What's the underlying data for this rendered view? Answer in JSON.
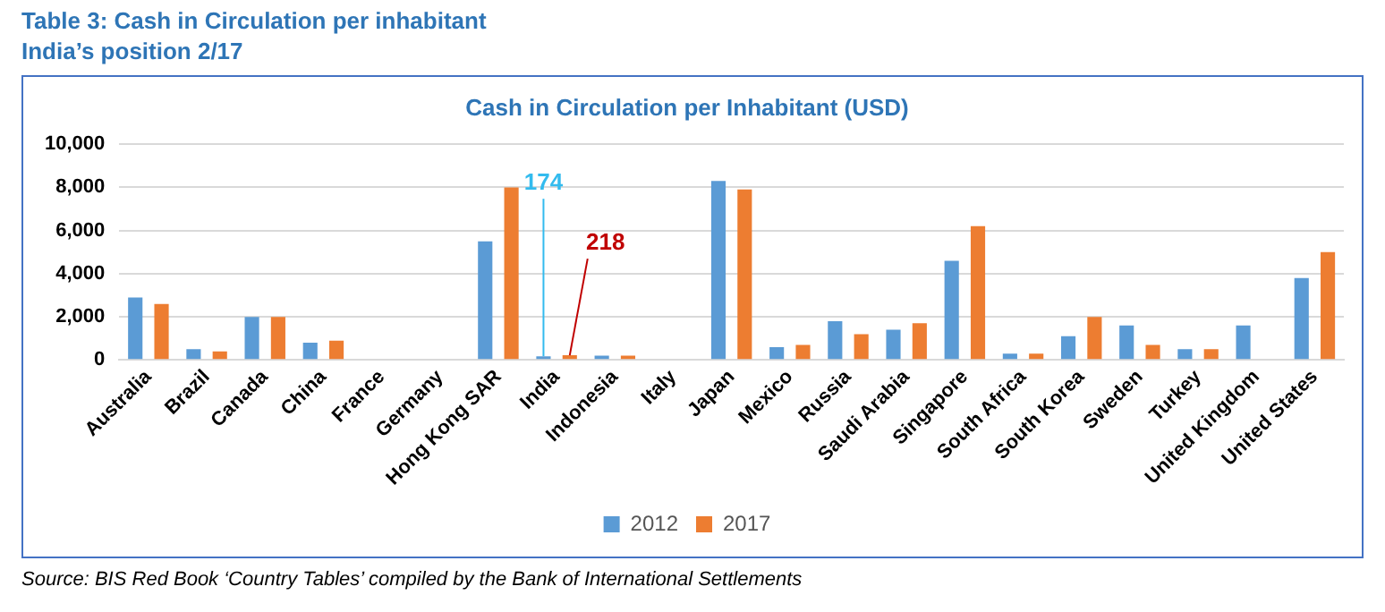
{
  "chart_data": {
    "type": "bar",
    "title": "Cash in Circulation per Inhabitant (USD)",
    "categories": [
      "Australia",
      "Brazil",
      "Canada",
      "China",
      "France",
      "Germany",
      "Hong Kong SAR",
      "India",
      "Indonesia",
      "Italy",
      "Japan",
      "Mexico",
      "Russia",
      "Saudi Arabia",
      "Singapore",
      "South Africa",
      "South Korea",
      "Sweden",
      "Turkey",
      "United Kingdom",
      "United States"
    ],
    "series": [
      {
        "name": "2012",
        "color": "#5b9bd5",
        "values": [
          2900,
          500,
          2000,
          800,
          null,
          null,
          5500,
          174,
          200,
          null,
          8300,
          600,
          1800,
          1400,
          4600,
          300,
          1100,
          1600,
          500,
          1600,
          3800
        ],
        "value_labels": [
          null,
          null,
          null,
          null,
          null,
          null,
          null,
          "174",
          null,
          null,
          null,
          null,
          null,
          null,
          null,
          null,
          null,
          null,
          null,
          null,
          null
        ]
      },
      {
        "name": "2017",
        "color": "#ed7d31",
        "values": [
          2600,
          400,
          2000,
          900,
          null,
          null,
          8000,
          218,
          200,
          null,
          7900,
          700,
          1200,
          1700,
          6200,
          300,
          2000,
          700,
          500,
          null,
          5000
        ],
        "value_labels": [
          null,
          null,
          null,
          null,
          null,
          null,
          null,
          "218",
          null,
          null,
          null,
          null,
          null,
          null,
          null,
          null,
          null,
          null,
          null,
          null,
          null
        ]
      }
    ],
    "ylim": [
      0,
      10000
    ],
    "yticks": [
      0,
      {
        "value": 2000,
        "label": "2,000"
      },
      {
        "value": 4000,
        "label": "4,000"
      },
      {
        "value": 6000,
        "label": "6,000"
      },
      {
        "value": 8000,
        "label": "8,000"
      },
      {
        "value": 10000,
        "label": "10,000"
      }
    ],
    "grid": "y",
    "legend": "bottom",
    "annotations": [
      "Table 3: Cash in Circulation per inhabitant",
      "India’s position 2/17",
      "Source: BIS Red Book ‘Country Tables’ compiled by the Bank of International Settlements"
    ]
  }
}
